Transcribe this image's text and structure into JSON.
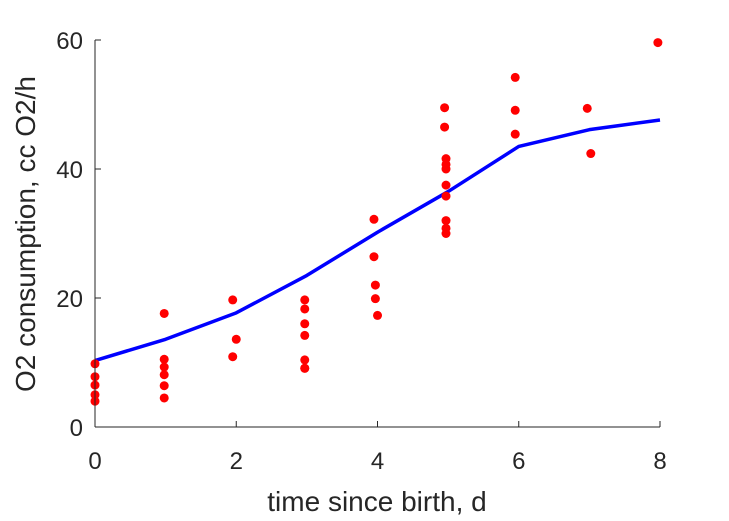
{
  "chart_data": {
    "type": "scatter",
    "title": "",
    "xlabel": "time since birth, d",
    "ylabel": "O2 consumption, cc O2/h",
    "xlim": [
      0,
      8
    ],
    "ylim": [
      0,
      60
    ],
    "xticks": [
      0,
      2,
      4,
      6,
      8
    ],
    "yticks": [
      0,
      20,
      40,
      60
    ],
    "grid": false,
    "legend": "none",
    "series": [
      {
        "kind": "scatter",
        "color": "#ff0000",
        "x": [
          0,
          0,
          0,
          0,
          0,
          0.98,
          0.98,
          0.98,
          0.98,
          0.98,
          0.98,
          1.95,
          1.95,
          2.0,
          2.97,
          2.97,
          2.97,
          2.97,
          2.97,
          2.97,
          2.97,
          3.95,
          3.95,
          3.97,
          3.97,
          4.0,
          4.95,
          4.95,
          4.97,
          4.97,
          4.97,
          4.97,
          4.97,
          4.97,
          4.97,
          4.97,
          5.95,
          5.95,
          5.95,
          6.97,
          7.02,
          7.97
        ],
        "y": [
          9.8,
          7.8,
          6.5,
          5.0,
          4.0,
          17.6,
          10.5,
          9.3,
          8.1,
          6.4,
          4.5,
          19.7,
          10.9,
          13.6,
          19.7,
          18.3,
          16.0,
          14.2,
          10.4,
          9.1,
          9.1,
          32.2,
          26.4,
          22.0,
          19.9,
          17.3,
          49.5,
          46.5,
          41.6,
          40.7,
          40.0,
          37.5,
          35.8,
          32.0,
          30.8,
          30.0,
          54.2,
          49.1,
          45.4,
          49.4,
          42.4,
          59.6
        ]
      },
      {
        "kind": "line",
        "color": "#0000ff",
        "x": [
          0,
          1,
          2,
          3,
          4,
          5,
          6,
          7,
          8
        ],
        "y": [
          10.3,
          13.6,
          17.7,
          23.5,
          30.2,
          36.5,
          43.5,
          46.1,
          47.6
        ]
      }
    ]
  }
}
